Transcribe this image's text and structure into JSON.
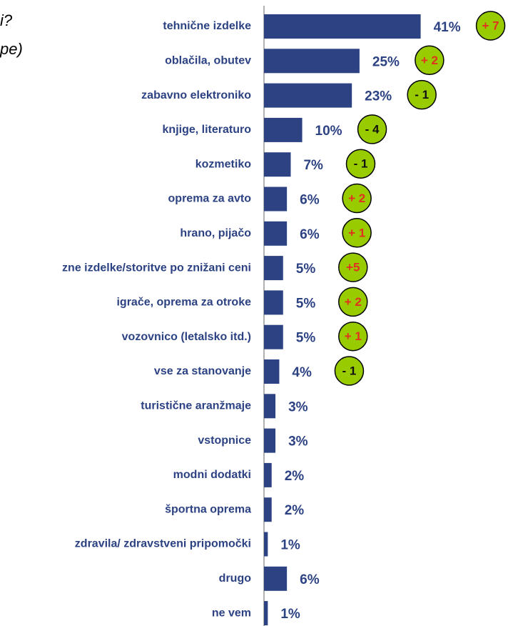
{
  "chart_data": {
    "type": "hbar",
    "title_lines": [
      "i?",
      "pe)"
    ],
    "categories": [
      "tehnične izdelke",
      "oblačila, obutev",
      "zabavno elektroniko",
      "knjige, literaturo",
      "kozmetiko",
      "oprema za avto",
      "hrano, pijačo",
      "zne izdelke/storitve po znižani ceni",
      "igrače, oprema za otroke",
      "vozovnico (letalsko itd.)",
      "vse za stanovanje",
      "turistične aranžmaje",
      "vstopnice",
      "modni dodatki",
      "športna oprema",
      "zdravila/ zdravstveni pripomočki",
      "drugo",
      "ne vem"
    ],
    "values": [
      41,
      25,
      23,
      10,
      7,
      6,
      6,
      5,
      5,
      5,
      4,
      3,
      3,
      2,
      2,
      1,
      6,
      1
    ],
    "value_labels": [
      "41%",
      "25%",
      "23%",
      "10%",
      "7%",
      "6%",
      "6%",
      "5%",
      "5%",
      "5%",
      "4%",
      "3%",
      "3%",
      "2%",
      "2%",
      "1%",
      "6%",
      "1%"
    ],
    "changes": [
      7,
      2,
      -1,
      -4,
      -1,
      2,
      1,
      5,
      2,
      1,
      -1,
      null,
      null,
      null,
      null,
      null,
      null,
      null
    ],
    "change_labels": [
      "+ 7",
      "+ 2",
      "- 1",
      "- 4",
      "- 1",
      "+ 2",
      "+ 1",
      "+5",
      "+ 2",
      "+ 1",
      "- 1",
      null,
      null,
      null,
      null,
      null,
      null,
      null
    ],
    "color": "#2c4283",
    "xlim": [
      0,
      45
    ]
  }
}
